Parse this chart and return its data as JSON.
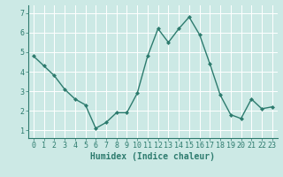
{
  "x": [
    0,
    1,
    2,
    3,
    4,
    5,
    6,
    7,
    8,
    9,
    10,
    11,
    12,
    13,
    14,
    15,
    16,
    17,
    18,
    19,
    20,
    21,
    22,
    23
  ],
  "y": [
    4.8,
    4.3,
    3.8,
    3.1,
    2.6,
    2.3,
    1.1,
    1.4,
    1.9,
    1.9,
    2.9,
    4.8,
    6.2,
    5.5,
    6.2,
    6.8,
    5.9,
    4.4,
    2.8,
    1.8,
    1.6,
    2.6,
    2.1,
    2.2
  ],
  "line_color": "#2d7b6e",
  "marker": "D",
  "marker_size": 2,
  "bg_color": "#cce9e5",
  "plot_bg_color": "#cce9e5",
  "grid_color": "#ffffff",
  "xlabel": "Humidex (Indice chaleur)",
  "ylim": [
    0.6,
    7.4
  ],
  "xlim": [
    -0.5,
    23.5
  ],
  "yticks": [
    1,
    2,
    3,
    4,
    5,
    6,
    7
  ],
  "xticks": [
    0,
    1,
    2,
    3,
    4,
    5,
    6,
    7,
    8,
    9,
    10,
    11,
    12,
    13,
    14,
    15,
    16,
    17,
    18,
    19,
    20,
    21,
    22,
    23
  ],
  "xlabel_fontsize": 7,
  "tick_fontsize": 6,
  "line_width": 1.0,
  "spine_color": "#2d7b6e"
}
